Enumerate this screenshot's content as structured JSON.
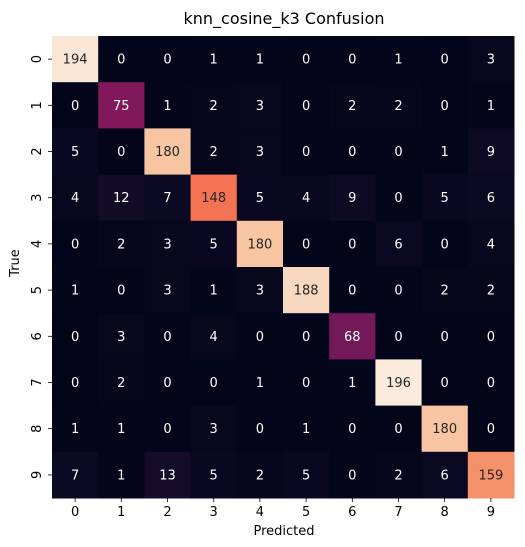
{
  "chart_data": {
    "type": "heatmap",
    "title": "knn_cosine_k3 Confusion",
    "xlabel": "Predicted",
    "ylabel": "True",
    "x_ticks": [
      "0",
      "1",
      "2",
      "3",
      "4",
      "5",
      "6",
      "7",
      "8",
      "9"
    ],
    "y_ticks": [
      "0",
      "1",
      "2",
      "3",
      "4",
      "5",
      "6",
      "7",
      "8",
      "9"
    ],
    "values": [
      [
        194,
        0,
        0,
        1,
        1,
        0,
        0,
        1,
        0,
        3
      ],
      [
        0,
        75,
        1,
        2,
        3,
        0,
        2,
        2,
        0,
        1
      ],
      [
        5,
        0,
        180,
        2,
        3,
        0,
        0,
        0,
        1,
        9
      ],
      [
        4,
        12,
        7,
        148,
        5,
        4,
        9,
        0,
        5,
        6
      ],
      [
        0,
        2,
        3,
        5,
        180,
        0,
        0,
        6,
        0,
        4
      ],
      [
        1,
        0,
        3,
        1,
        3,
        188,
        0,
        0,
        2,
        2
      ],
      [
        0,
        3,
        0,
        4,
        0,
        0,
        68,
        0,
        0,
        0
      ],
      [
        0,
        2,
        0,
        0,
        1,
        0,
        1,
        196,
        0,
        0
      ],
      [
        1,
        1,
        0,
        3,
        0,
        1,
        0,
        0,
        180,
        0
      ],
      [
        7,
        1,
        13,
        5,
        2,
        5,
        0,
        2,
        6,
        159
      ]
    ],
    "value_range": [
      0,
      196
    ],
    "colormap": "rocket",
    "colorbar": false,
    "grid": false
  }
}
